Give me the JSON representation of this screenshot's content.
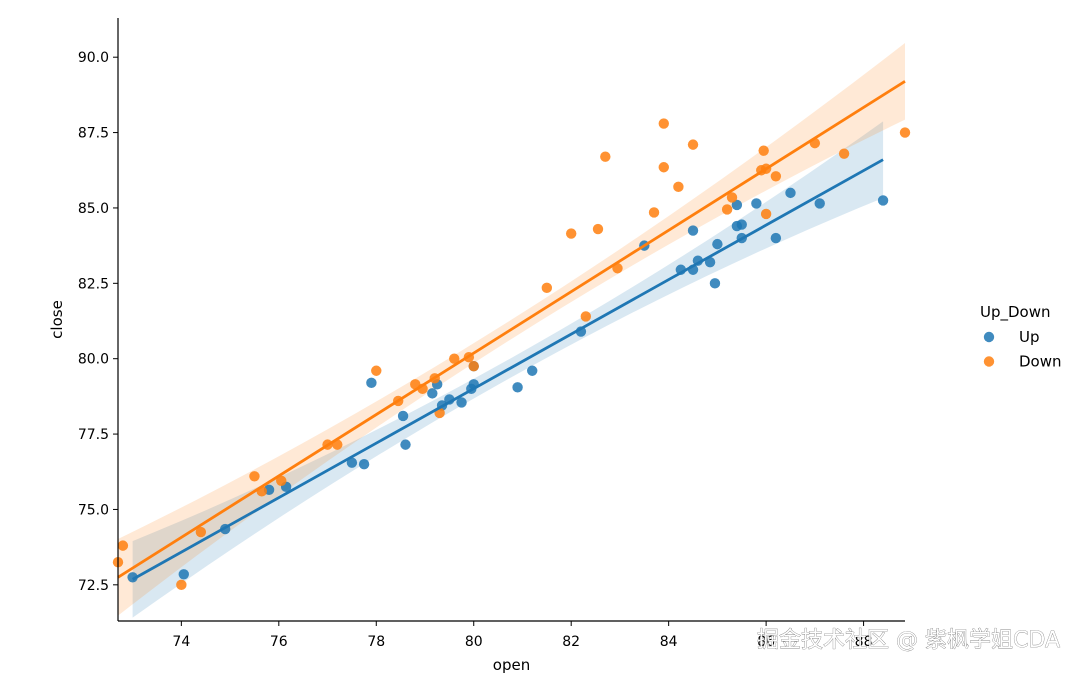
{
  "watermark": "掘金技术社区 @ 紫枫学姐CDA",
  "chart_data": {
    "type": "scatter",
    "xlabel": "open",
    "ylabel": "close",
    "xlim": [
      72.7,
      88.85
    ],
    "ylim": [
      71.3,
      91.3
    ],
    "xticks": [
      74,
      76,
      78,
      80,
      82,
      84,
      86,
      88
    ],
    "yticks": [
      72.5,
      75.0,
      77.5,
      80.0,
      82.5,
      85.0,
      87.5,
      90.0
    ],
    "grid": false,
    "legend": {
      "title": "Up_Down",
      "placement": "right"
    },
    "series": [
      {
        "name": "Up",
        "color": "#1f77b4",
        "fit_line": [
          [
            73.0,
            72.68
          ],
          [
            88.4,
            86.6
          ]
        ],
        "points": [
          [
            73.0,
            72.75
          ],
          [
            74.05,
            72.85
          ],
          [
            74.9,
            74.35
          ],
          [
            75.8,
            75.65
          ],
          [
            76.15,
            75.75
          ],
          [
            77.5,
            76.55
          ],
          [
            77.75,
            76.5
          ],
          [
            77.9,
            79.2
          ],
          [
            78.55,
            78.1
          ],
          [
            78.6,
            77.15
          ],
          [
            79.15,
            78.85
          ],
          [
            79.25,
            79.15
          ],
          [
            79.35,
            78.45
          ],
          [
            79.5,
            78.65
          ],
          [
            79.75,
            78.55
          ],
          [
            79.95,
            79.0
          ],
          [
            80.0,
            79.15
          ],
          [
            80.0,
            79.75
          ],
          [
            80.9,
            79.05
          ],
          [
            81.2,
            79.6
          ],
          [
            82.2,
            80.9
          ],
          [
            83.5,
            83.75
          ],
          [
            84.25,
            82.95
          ],
          [
            84.5,
            84.25
          ],
          [
            84.5,
            82.95
          ],
          [
            84.6,
            83.25
          ],
          [
            84.85,
            83.2
          ],
          [
            84.95,
            82.5
          ],
          [
            85.0,
            83.8
          ],
          [
            85.4,
            84.4
          ],
          [
            85.4,
            85.1
          ],
          [
            85.5,
            84.45
          ],
          [
            85.5,
            84.0
          ],
          [
            85.8,
            85.15
          ],
          [
            86.2,
            84.0
          ],
          [
            86.5,
            85.5
          ],
          [
            87.1,
            85.15
          ],
          [
            88.4,
            85.25
          ]
        ]
      },
      {
        "name": "Down",
        "color": "#ff7f0e",
        "fit_line": [
          [
            72.7,
            72.75
          ],
          [
            88.85,
            89.2
          ]
        ],
        "points": [
          [
            72.7,
            73.25
          ],
          [
            72.8,
            73.8
          ],
          [
            74.0,
            72.5
          ],
          [
            74.4,
            74.25
          ],
          [
            75.5,
            76.1
          ],
          [
            75.65,
            75.6
          ],
          [
            76.05,
            75.95
          ],
          [
            77.0,
            77.15
          ],
          [
            77.2,
            77.15
          ],
          [
            78.0,
            79.6
          ],
          [
            78.45,
            78.6
          ],
          [
            78.8,
            79.15
          ],
          [
            78.95,
            79.0
          ],
          [
            79.2,
            79.35
          ],
          [
            79.3,
            78.2
          ],
          [
            79.6,
            80.0
          ],
          [
            79.9,
            80.05
          ],
          [
            80.0,
            79.75
          ],
          [
            81.5,
            82.35
          ],
          [
            82.0,
            84.15
          ],
          [
            82.3,
            81.4
          ],
          [
            82.55,
            84.3
          ],
          [
            82.7,
            86.7
          ],
          [
            82.95,
            83.0
          ],
          [
            83.7,
            84.85
          ],
          [
            83.9,
            87.8
          ],
          [
            83.9,
            86.35
          ],
          [
            84.2,
            85.7
          ],
          [
            84.5,
            87.1
          ],
          [
            85.2,
            84.95
          ],
          [
            85.3,
            85.35
          ],
          [
            85.9,
            86.25
          ],
          [
            85.95,
            86.9
          ],
          [
            86.0,
            86.3
          ],
          [
            86.0,
            84.8
          ],
          [
            86.2,
            86.05
          ],
          [
            87.0,
            87.15
          ],
          [
            87.6,
            86.8
          ],
          [
            88.85,
            87.5
          ]
        ]
      }
    ]
  }
}
